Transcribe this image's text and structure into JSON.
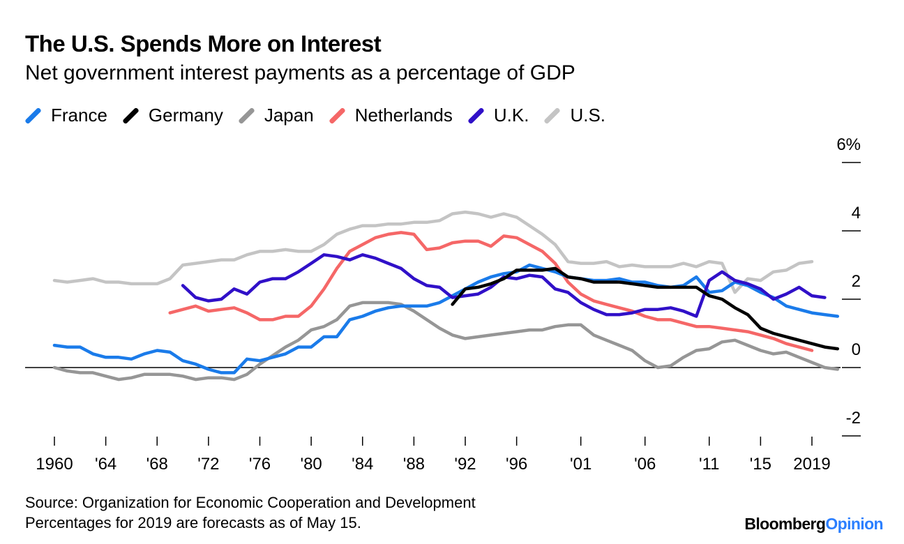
{
  "header": {
    "title": "The U.S. Spends More on Interest",
    "subtitle": "Net government interest payments as a percentage of GDP"
  },
  "footer": {
    "source": "Source: Organization for Economic Cooperation and Development",
    "note": "Percentages for 2019 are forecasts as of May 15.",
    "brand_part1": "Bloomberg",
    "brand_part2": "Opinion"
  },
  "chart_data": {
    "type": "line",
    "title": "The U.S. Spends More on Interest",
    "subtitle": "Net government interest payments as a percentage of GDP",
    "xlabel": "",
    "ylabel": "",
    "xlim": [
      1960,
      2019
    ],
    "ylim": [
      -2,
      6
    ],
    "grid": false,
    "legend_position": "top",
    "y_ticks": [
      {
        "value": 6,
        "label": "6%"
      },
      {
        "value": 4,
        "label": "4"
      },
      {
        "value": 2,
        "label": "2"
      },
      {
        "value": 0,
        "label": "0"
      },
      {
        "value": -2,
        "label": "-2"
      }
    ],
    "x_ticks": [
      {
        "value": 1960,
        "label": "1960"
      },
      {
        "value": 1964,
        "label": "'64"
      },
      {
        "value": 1968,
        "label": "'68"
      },
      {
        "value": 1972,
        "label": "'72"
      },
      {
        "value": 1976,
        "label": "'76"
      },
      {
        "value": 1980,
        "label": "'80"
      },
      {
        "value": 1984,
        "label": "'84"
      },
      {
        "value": 1988,
        "label": "'88"
      },
      {
        "value": 1992,
        "label": "'92"
      },
      {
        "value": 1996,
        "label": "'96"
      },
      {
        "value": 2001,
        "label": "'01"
      },
      {
        "value": 2006,
        "label": "'06"
      },
      {
        "value": 2011,
        "label": "'11"
      },
      {
        "value": 2015,
        "label": "'15"
      },
      {
        "value": 2019,
        "label": "2019"
      }
    ],
    "series": [
      {
        "name": "France",
        "color": "#1a7bea",
        "start": 1960,
        "values": [
          0.65,
          0.6,
          0.6,
          0.4,
          0.3,
          0.3,
          0.25,
          0.4,
          0.5,
          0.45,
          0.2,
          0.1,
          -0.05,
          -0.15,
          -0.15,
          0.25,
          0.2,
          0.3,
          0.4,
          0.6,
          0.6,
          0.9,
          0.9,
          1.4,
          1.5,
          1.65,
          1.75,
          1.8,
          1.8,
          1.8,
          1.9,
          2.1,
          2.3,
          2.5,
          2.65,
          2.75,
          2.8,
          3.0,
          2.9,
          2.8,
          2.65,
          2.6,
          2.55,
          2.55,
          2.6,
          2.5,
          2.5,
          2.4,
          2.35,
          2.4,
          2.65,
          2.2,
          2.25,
          2.5,
          2.4,
          2.2,
          2.05,
          1.8,
          1.7,
          1.6,
          1.55,
          1.5
        ]
      },
      {
        "name": "Germany",
        "color": "#000000",
        "start": 1991,
        "values": [
          1.85,
          2.3,
          2.35,
          2.45,
          2.6,
          2.85,
          2.85,
          2.85,
          2.9,
          2.65,
          2.6,
          2.5,
          2.5,
          2.5,
          2.45,
          2.4,
          2.35,
          2.35,
          2.35,
          2.35,
          2.1,
          2.0,
          1.75,
          1.55,
          1.15,
          1.0,
          0.9,
          0.8,
          0.7,
          0.6,
          0.55
        ]
      },
      {
        "name": "Japan",
        "color": "#969696",
        "start": 1960,
        "values": [
          0.0,
          -0.1,
          -0.15,
          -0.15,
          -0.25,
          -0.35,
          -0.3,
          -0.2,
          -0.2,
          -0.2,
          -0.25,
          -0.35,
          -0.3,
          -0.3,
          -0.35,
          -0.2,
          0.1,
          0.35,
          0.6,
          0.8,
          1.1,
          1.2,
          1.4,
          1.8,
          1.9,
          1.9,
          1.9,
          1.85,
          1.65,
          1.4,
          1.15,
          0.95,
          0.85,
          0.9,
          0.95,
          1.0,
          1.05,
          1.1,
          1.1,
          1.2,
          1.25,
          1.25,
          0.95,
          0.8,
          0.65,
          0.5,
          0.2,
          0.0,
          0.05,
          0.3,
          0.5,
          0.55,
          0.75,
          0.8,
          0.65,
          0.5,
          0.4,
          0.45,
          0.3,
          0.15,
          0.0,
          -0.05
        ]
      },
      {
        "name": "Netherlands",
        "color": "#f56767",
        "start": 1969,
        "values": [
          1.6,
          1.7,
          1.8,
          1.65,
          1.7,
          1.75,
          1.6,
          1.4,
          1.4,
          1.5,
          1.5,
          1.8,
          2.3,
          2.9,
          3.4,
          3.6,
          3.8,
          3.9,
          3.95,
          3.9,
          3.45,
          3.5,
          3.65,
          3.7,
          3.7,
          3.55,
          3.85,
          3.8,
          3.6,
          3.4,
          3.05,
          2.5,
          2.15,
          1.95,
          1.85,
          1.75,
          1.65,
          1.5,
          1.4,
          1.4,
          1.3,
          1.2,
          1.2,
          1.15,
          1.1,
          1.05,
          0.95,
          0.85,
          0.7,
          0.6,
          0.5
        ]
      },
      {
        "name": "U.K.",
        "color": "#3010c8",
        "start": 1970,
        "values": [
          2.4,
          2.05,
          1.95,
          2.0,
          2.3,
          2.15,
          2.5,
          2.6,
          2.6,
          2.8,
          3.05,
          3.3,
          3.25,
          3.15,
          3.3,
          3.2,
          3.05,
          2.9,
          2.6,
          2.4,
          2.35,
          2.05,
          2.1,
          2.15,
          2.35,
          2.65,
          2.6,
          2.7,
          2.65,
          2.3,
          2.2,
          1.9,
          1.7,
          1.55,
          1.55,
          1.6,
          1.7,
          1.7,
          1.75,
          1.65,
          1.5,
          2.55,
          2.8,
          2.55,
          2.45,
          2.3,
          2.0,
          2.15,
          2.35,
          2.1,
          2.05
        ]
      },
      {
        "name": "U.S.",
        "color": "#c4c4c4",
        "start": 1960,
        "values": [
          2.55,
          2.5,
          2.55,
          2.6,
          2.5,
          2.5,
          2.45,
          2.45,
          2.45,
          2.6,
          3.0,
          3.05,
          3.1,
          3.15,
          3.15,
          3.3,
          3.4,
          3.4,
          3.45,
          3.4,
          3.4,
          3.6,
          3.9,
          4.05,
          4.15,
          4.15,
          4.2,
          4.2,
          4.25,
          4.25,
          4.3,
          4.5,
          4.55,
          4.5,
          4.4,
          4.5,
          4.4,
          4.15,
          3.9,
          3.6,
          3.1,
          3.05,
          3.05,
          3.1,
          2.95,
          3.0,
          2.95,
          2.95,
          2.95,
          3.05,
          2.95,
          3.1,
          3.05,
          2.2,
          2.6,
          2.55,
          2.8,
          2.85,
          3.05,
          3.1
        ]
      }
    ]
  }
}
